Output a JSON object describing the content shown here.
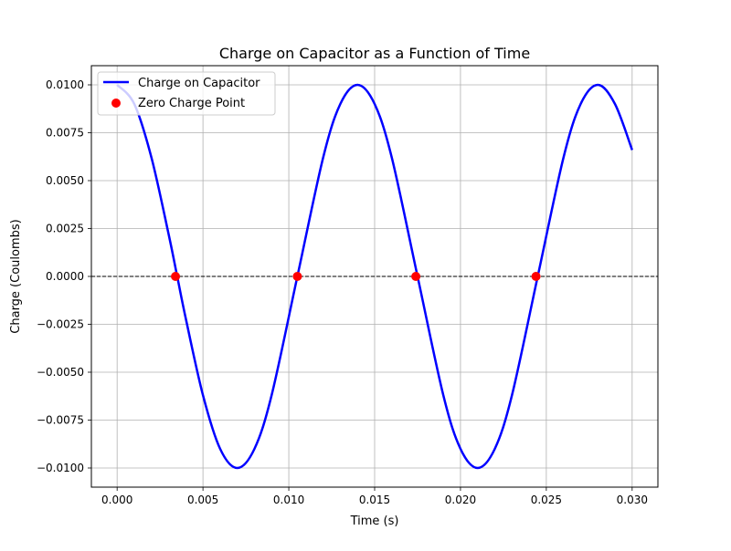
{
  "chart_data": {
    "type": "line",
    "title": "Charge on Capacitor as a Function of Time",
    "xlabel": "Time (s)",
    "ylabel": "Charge (Coulombs)",
    "xlim": [
      -0.0015,
      0.0315
    ],
    "ylim": [
      -0.011,
      0.011
    ],
    "x_ticks": [
      0.0,
      0.005,
      0.01,
      0.015,
      0.02,
      0.025,
      0.03
    ],
    "x_tick_labels": [
      "0.000",
      "0.005",
      "0.010",
      "0.015",
      "0.020",
      "0.025",
      "0.030"
    ],
    "y_ticks": [
      0.01,
      0.0075,
      0.005,
      0.0025,
      0.0,
      -0.0025,
      -0.005,
      -0.0075,
      -0.01
    ],
    "y_tick_labels": [
      "0.0100",
      "0.0075",
      "0.0050",
      "0.0025",
      "0.0000",
      "−0.0025",
      "−0.0050",
      "−0.0075",
      "−0.0100"
    ],
    "grid": true,
    "legend_position": "upper-left",
    "reference_line": {
      "y": 0,
      "style": "dashed",
      "color": "#000000"
    },
    "series": [
      {
        "name": "Charge on Capacitor",
        "kind": "line",
        "color": "#0000ff",
        "x": [
          0.0,
          0.001,
          0.002,
          0.003,
          0.0035,
          0.004,
          0.005,
          0.006,
          0.007,
          0.008,
          0.009,
          0.0105,
          0.012,
          0.013,
          0.014,
          0.015,
          0.016,
          0.0175,
          0.019,
          0.02,
          0.021,
          0.022,
          0.023,
          0.0245,
          0.026,
          0.027,
          0.028,
          0.029,
          0.03
        ],
        "y": [
          0.01,
          0.009,
          0.0062,
          0.0022,
          0.0,
          -0.0022,
          -0.0062,
          -0.009,
          -0.01,
          -0.009,
          -0.0062,
          0.0,
          0.0062,
          0.009,
          0.01,
          0.009,
          0.0062,
          0.0,
          -0.0062,
          -0.009,
          -0.01,
          -0.009,
          -0.0062,
          0.0,
          0.0062,
          0.009,
          0.01,
          0.009,
          0.0066
        ]
      },
      {
        "name": "Zero Charge Point",
        "kind": "scatter",
        "color": "#ff0000",
        "x": [
          0.0034,
          0.0105,
          0.0174,
          0.0244
        ],
        "y": [
          0.0,
          0.0,
          0.0,
          0.0
        ]
      }
    ]
  }
}
